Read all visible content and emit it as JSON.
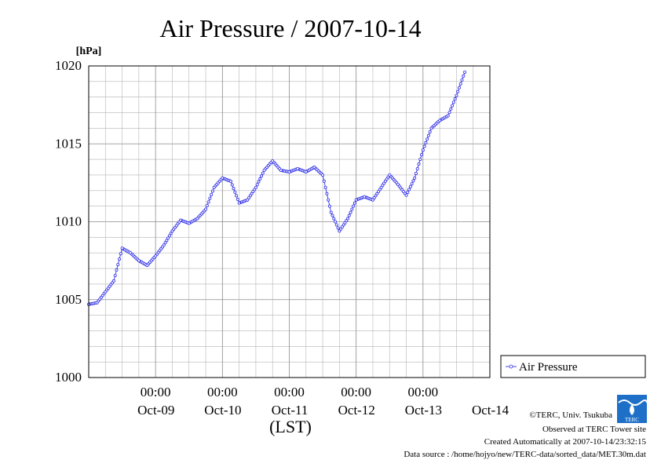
{
  "chart_data": {
    "type": "line",
    "title": "Air Pressure / 2007-10-14",
    "ylabel": "[hPa]",
    "xlabel": "(LST)",
    "ylim": [
      1000,
      1020
    ],
    "yticks": [
      "1000",
      "1005",
      "1010",
      "1015",
      "1020"
    ],
    "xticks": [
      {
        "time": "00:00",
        "date": "Oct-09"
      },
      {
        "time": "00:00",
        "date": "Oct-10"
      },
      {
        "time": "00:00",
        "date": "Oct-11"
      },
      {
        "time": "00:00",
        "date": "Oct-12"
      },
      {
        "time": "00:00",
        "date": "Oct-13"
      },
      {
        "time": "",
        "date": "Oct-14"
      }
    ],
    "xlim": [
      "2007-10-08T00:00",
      "2007-10-14T00:00"
    ],
    "grid": true,
    "legend": "right",
    "series": [
      {
        "name": "Air Pressure",
        "color": "#3030e8",
        "marker": "open-circle",
        "points": [
          [
            "2007-10-08T00:00",
            1004.7
          ],
          [
            "2007-10-08T03:00",
            1004.8
          ],
          [
            "2007-10-08T06:00",
            1005.5
          ],
          [
            "2007-10-08T09:00",
            1006.2
          ],
          [
            "2007-10-08T12:00",
            1008.3
          ],
          [
            "2007-10-08T15:00",
            1008.0
          ],
          [
            "2007-10-08T18:00",
            1007.5
          ],
          [
            "2007-10-08T21:00",
            1007.2
          ],
          [
            "2007-10-09T00:00",
            1007.8
          ],
          [
            "2007-10-09T03:00",
            1008.5
          ],
          [
            "2007-10-09T06:00",
            1009.4
          ],
          [
            "2007-10-09T09:00",
            1010.1
          ],
          [
            "2007-10-09T12:00",
            1009.9
          ],
          [
            "2007-10-09T15:00",
            1010.2
          ],
          [
            "2007-10-09T18:00",
            1010.8
          ],
          [
            "2007-10-09T21:00",
            1012.2
          ],
          [
            "2007-10-10T00:00",
            1012.8
          ],
          [
            "2007-10-10T03:00",
            1012.6
          ],
          [
            "2007-10-10T06:00",
            1011.2
          ],
          [
            "2007-10-10T09:00",
            1011.4
          ],
          [
            "2007-10-10T12:00",
            1012.2
          ],
          [
            "2007-10-10T15:00",
            1013.3
          ],
          [
            "2007-10-10T18:00",
            1013.9
          ],
          [
            "2007-10-10T21:00",
            1013.3
          ],
          [
            "2007-10-11T00:00",
            1013.2
          ],
          [
            "2007-10-11T03:00",
            1013.4
          ],
          [
            "2007-10-11T06:00",
            1013.2
          ],
          [
            "2007-10-11T09:00",
            1013.5
          ],
          [
            "2007-10-11T12:00",
            1013.0
          ],
          [
            "2007-10-11T15:00",
            1010.6
          ],
          [
            "2007-10-11T18:00",
            1009.4
          ],
          [
            "2007-10-11T21:00",
            1010.2
          ],
          [
            "2007-10-12T00:00",
            1011.4
          ],
          [
            "2007-10-12T03:00",
            1011.6
          ],
          [
            "2007-10-12T06:00",
            1011.4
          ],
          [
            "2007-10-12T09:00",
            1012.2
          ],
          [
            "2007-10-12T12:00",
            1013.0
          ],
          [
            "2007-10-12T15:00",
            1012.4
          ],
          [
            "2007-10-12T18:00",
            1011.7
          ],
          [
            "2007-10-12T21:00",
            1012.8
          ],
          [
            "2007-10-13T00:00",
            1014.6
          ],
          [
            "2007-10-13T03:00",
            1016.0
          ],
          [
            "2007-10-13T06:00",
            1016.5
          ],
          [
            "2007-10-13T09:00",
            1016.8
          ],
          [
            "2007-10-13T12:00",
            1018.1
          ],
          [
            "2007-10-13T15:00",
            1019.6
          ]
        ]
      }
    ]
  },
  "footer": {
    "copyright": "©TERC, Univ. Tsukuba",
    "observed": "Observed at TERC Tower site",
    "created": "Created Automatically at 2007-10-14/23:32:15",
    "source": "Data source : /home/hojyo/new/TERC-data/sorted_data/MET.30m.dat",
    "logo_text": "TERC"
  },
  "colors": {
    "series": "#3030e8",
    "logo": "#1e6fc8"
  }
}
